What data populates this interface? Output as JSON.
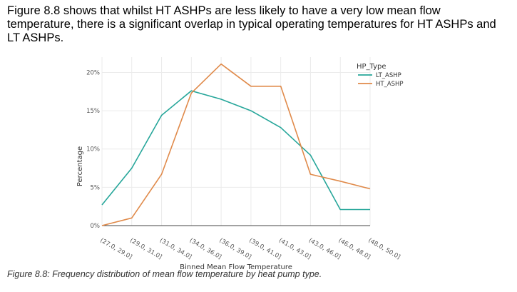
{
  "intro_text": "Figure 8.8 shows that whilst HT ASHPs are less likely to have a very low mean flow temperature, there is a significant overlap in typical operating temperatures for HT ASHPs and LT ASHPs.",
  "caption": "Figure 8.8: Frequency distribution of mean flow temperature by heat pump type.",
  "chart_data": {
    "type": "line",
    "title": "",
    "xlabel": "Binned Mean Flow Temperature",
    "ylabel": "Percentage",
    "categories": [
      "(27.0, 29.0]",
      "(29.0, 31.0]",
      "(31.0, 34.0]",
      "(34.0, 36.0]",
      "(36.0, 39.0]",
      "(39.0, 41.0]",
      "(41.0, 43.0]",
      "(43.0, 46.0]",
      "(46.0, 48.0]",
      "(48.0, 50.0]"
    ],
    "ylim": [
      0,
      22
    ],
    "yticks": [
      0,
      5,
      10,
      15,
      20
    ],
    "ytick_labels": [
      "0%",
      "5%",
      "10%",
      "15%",
      "20%"
    ],
    "grid": true,
    "legend": {
      "title": "HP_Type",
      "placement": "right"
    },
    "series": [
      {
        "name": "LT_ASHP",
        "color": "#26a69a",
        "values": [
          2.7,
          7.5,
          14.4,
          17.6,
          16.5,
          15.0,
          12.8,
          9.2,
          2.1,
          2.1
        ]
      },
      {
        "name": "HT_ASHP",
        "color": "#e08a4a",
        "values": [
          0.0,
          1.0,
          6.7,
          17.3,
          21.1,
          18.2,
          18.2,
          6.7,
          5.8,
          4.8
        ]
      }
    ]
  }
}
